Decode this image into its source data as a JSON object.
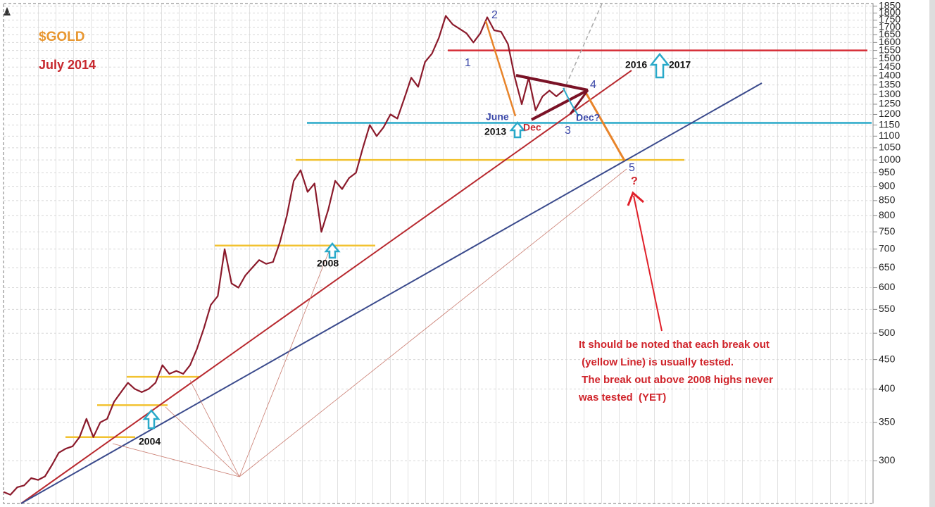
{
  "chart_data": {
    "type": "line",
    "title": "$GOLD",
    "subtitle": "July 2014",
    "values": [
      265,
      262,
      270,
      272,
      280,
      278,
      282,
      295,
      310,
      315,
      318,
      330,
      355,
      330,
      350,
      355,
      380,
      395,
      410,
      400,
      395,
      400,
      410,
      440,
      425,
      430,
      425,
      440,
      470,
      510,
      560,
      580,
      700,
      610,
      600,
      630,
      650,
      670,
      660,
      665,
      720,
      800,
      920,
      960,
      880,
      910,
      750,
      820,
      920,
      890,
      930,
      950,
      1050,
      1150,
      1100,
      1140,
      1200,
      1180,
      1280,
      1390,
      1340,
      1480,
      1530,
      1630,
      1780,
      1720,
      1690,
      1660,
      1600,
      1660,
      1770,
      1680,
      1670,
      1590,
      1390,
      1250,
      1390,
      1220,
      1290,
      1320,
      1290,
      1320
    ],
    "color": "#8b1a2b",
    "log_scale": true,
    "grid": true,
    "ylim": [
      253,
      1870
    ],
    "yticks": [
      300,
      350,
      400,
      450,
      500,
      550,
      600,
      650,
      700,
      750,
      800,
      850,
      900,
      950,
      1000,
      1050,
      1100,
      1150,
      1200,
      1250,
      1300,
      1350,
      1400,
      1450,
      1500,
      1550,
      1600,
      1650,
      1700,
      1750,
      1800,
      1850
    ],
    "reference_lines": [
      {
        "value": 1550,
        "color": "#d62c36"
      },
      {
        "value": 1160,
        "color": "#29a9c9"
      },
      {
        "value": 1000,
        "color": "#f2c230"
      },
      {
        "value": 710,
        "color": "#f2c230"
      },
      {
        "value": 420,
        "color": "#f2c230"
      },
      {
        "value": 375,
        "color": "#f2c230"
      },
      {
        "value": 330,
        "color": "#f2c230"
      }
    ],
    "annotations": [
      "1",
      "2",
      "3",
      "4",
      "5",
      "?",
      "June",
      "2013",
      "Dec",
      "Dec?",
      "2016",
      "2017",
      "2004",
      "2008"
    ],
    "note": [
      "It should be noted that each break out",
      " (yellow Line) is usually tested.",
      " The break out above 2008 highs never",
      "was tested  (YET)"
    ]
  }
}
